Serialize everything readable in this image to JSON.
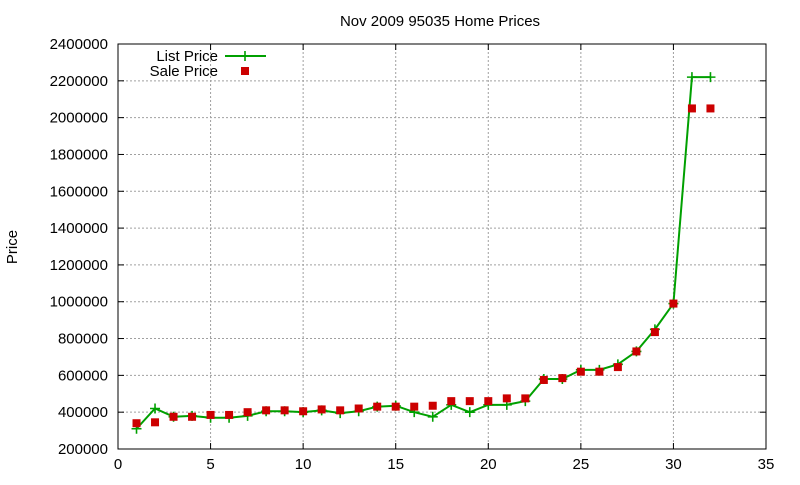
{
  "chart_data": {
    "type": "line",
    "title": "Nov 2009 95035 Home Prices",
    "xlabel": "",
    "ylabel": "Price",
    "xlim": [
      0,
      35
    ],
    "ylim": [
      200000,
      2400000
    ],
    "x_ticks": [
      0,
      5,
      10,
      15,
      20,
      25,
      30,
      35
    ],
    "y_ticks": [
      200000,
      400000,
      600000,
      800000,
      1000000,
      1200000,
      1400000,
      1600000,
      1800000,
      2000000,
      2200000,
      2400000
    ],
    "grid": true,
    "legend_position": "top-left",
    "series": [
      {
        "name": "List Price",
        "style": "line+plus",
        "color": "#00a000",
        "x": [
          1,
          2,
          3,
          4,
          5,
          6,
          7,
          8,
          9,
          10,
          11,
          12,
          13,
          14,
          15,
          16,
          17,
          18,
          19,
          20,
          21,
          22,
          23,
          24,
          25,
          26,
          27,
          28,
          29,
          30,
          31,
          32
        ],
        "y": [
          310000,
          420000,
          375000,
          380000,
          370000,
          370000,
          380000,
          405000,
          405000,
          400000,
          410000,
          395000,
          405000,
          430000,
          435000,
          400000,
          375000,
          440000,
          400000,
          440000,
          440000,
          460000,
          580000,
          580000,
          630000,
          630000,
          660000,
          730000,
          850000,
          990000,
          2220000,
          2220000
        ]
      },
      {
        "name": "Sale Price",
        "style": "square",
        "color": "#cc0000",
        "x": [
          1,
          2,
          3,
          4,
          5,
          6,
          7,
          8,
          9,
          10,
          11,
          12,
          13,
          14,
          15,
          16,
          17,
          18,
          19,
          20,
          21,
          22,
          23,
          24,
          25,
          26,
          27,
          28,
          29,
          30,
          31,
          32
        ],
        "y": [
          340000,
          345000,
          375000,
          375000,
          385000,
          385000,
          400000,
          410000,
          410000,
          405000,
          415000,
          410000,
          420000,
          430000,
          430000,
          430000,
          435000,
          460000,
          460000,
          460000,
          475000,
          475000,
          575000,
          585000,
          620000,
          620000,
          645000,
          730000,
          835000,
          990000,
          2050000,
          2050000
        ]
      }
    ]
  }
}
